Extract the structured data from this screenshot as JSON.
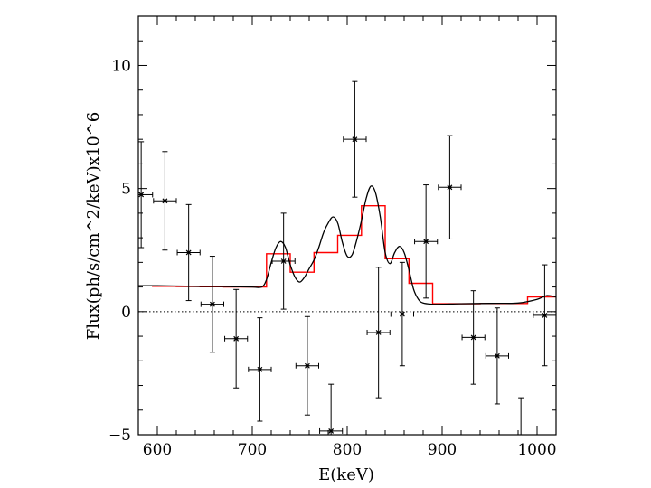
{
  "chart_data": {
    "type": "scatter",
    "xlabel": "E(keV)",
    "ylabel": "Flux(ph/s/cm^2/keV)x10^6",
    "xlim": [
      580,
      1020
    ],
    "ylim": [
      -5,
      12
    ],
    "x_ticks": [
      600,
      700,
      800,
      900,
      1000
    ],
    "x_tick_labels": [
      "600",
      "700",
      "800",
      "900",
      "1000"
    ],
    "y_ticks": [
      -5,
      0,
      5,
      10
    ],
    "y_tick_labels": [
      "−5",
      "0",
      "5",
      "10"
    ],
    "zero_line": true,
    "grid": false,
    "series": [
      {
        "kind": "errorbar",
        "color": "#000000",
        "marker": "x",
        "points": [
          {
            "x": 583,
            "y": 4.75,
            "xerr": 12,
            "yerr": 2.15
          },
          {
            "x": 608,
            "y": 4.5,
            "xerr": 12,
            "yerr": 2.0
          },
          {
            "x": 633,
            "y": 2.4,
            "xerr": 12,
            "yerr": 1.95
          },
          {
            "x": 658,
            "y": 0.3,
            "xerr": 12,
            "yerr": 1.95
          },
          {
            "x": 683,
            "y": -1.1,
            "xerr": 12,
            "yerr": 2.0
          },
          {
            "x": 708,
            "y": -2.35,
            "xerr": 12,
            "yerr": 2.1
          },
          {
            "x": 733,
            "y": 2.05,
            "xerr": 12,
            "yerr": 1.95
          },
          {
            "x": 758,
            "y": -2.2,
            "xerr": 12,
            "yerr": 2.0
          },
          {
            "x": 783,
            "y": -4.85,
            "xerr": 12,
            "yerr": 1.9
          },
          {
            "x": 808,
            "y": 7.0,
            "xerr": 12,
            "yerr": 2.35
          },
          {
            "x": 833,
            "y": -0.85,
            "xerr": 12,
            "yerr": 2.65
          },
          {
            "x": 858,
            "y": -0.1,
            "xerr": 12,
            "yerr": 2.1
          },
          {
            "x": 883,
            "y": 2.85,
            "xerr": 12,
            "yerr": 2.3
          },
          {
            "x": 908,
            "y": 5.05,
            "xerr": 12,
            "yerr": 2.1
          },
          {
            "x": 933,
            "y": -1.05,
            "xerr": 12,
            "yerr": 1.9
          },
          {
            "x": 958,
            "y": -1.8,
            "xerr": 12,
            "yerr": 1.95
          },
          {
            "x": 983,
            "y": -6.0,
            "xerr": 12,
            "yerr": 2.5
          },
          {
            "x": 1008,
            "y": -0.15,
            "xerr": 12,
            "yerr": 2.05
          }
        ]
      },
      {
        "kind": "step",
        "color": "#ff0000",
        "edges": [
          580,
          595,
          620,
          645,
          670,
          695,
          715,
          740,
          765,
          790,
          815,
          840,
          865,
          890,
          915,
          940,
          965,
          990,
          1020
        ],
        "values": [
          1.05,
          1.03,
          1.02,
          1.01,
          1.0,
          1.0,
          2.35,
          1.6,
          2.4,
          3.1,
          4.3,
          2.15,
          1.15,
          0.32,
          0.32,
          0.33,
          0.33,
          0.6
        ]
      },
      {
        "kind": "line",
        "color": "#000000",
        "x": [
          580,
          600,
          620,
          640,
          660,
          680,
          700,
          710,
          715,
          720,
          725,
          730,
          735,
          740,
          745,
          750,
          755,
          760,
          765,
          770,
          775,
          780,
          785,
          790,
          795,
          800,
          805,
          810,
          815,
          820,
          825,
          830,
          835,
          840,
          845,
          850,
          855,
          860,
          865,
          870,
          875,
          880,
          890,
          900,
          920,
          940,
          960,
          980,
          1000,
          1010,
          1020
        ],
        "y": [
          1.05,
          1.05,
          1.04,
          1.03,
          1.02,
          1.01,
          1.0,
          1.0,
          1.3,
          2.0,
          2.6,
          2.85,
          2.6,
          1.9,
          1.4,
          1.2,
          1.4,
          1.75,
          2.1,
          2.6,
          3.2,
          3.6,
          3.85,
          3.6,
          2.8,
          2.25,
          2.3,
          2.9,
          3.7,
          4.6,
          5.1,
          4.8,
          3.8,
          2.4,
          1.95,
          2.4,
          2.65,
          2.4,
          1.7,
          0.9,
          0.5,
          0.35,
          0.3,
          0.3,
          0.32,
          0.33,
          0.34,
          0.35,
          0.5,
          0.65,
          0.6
        ]
      }
    ]
  }
}
